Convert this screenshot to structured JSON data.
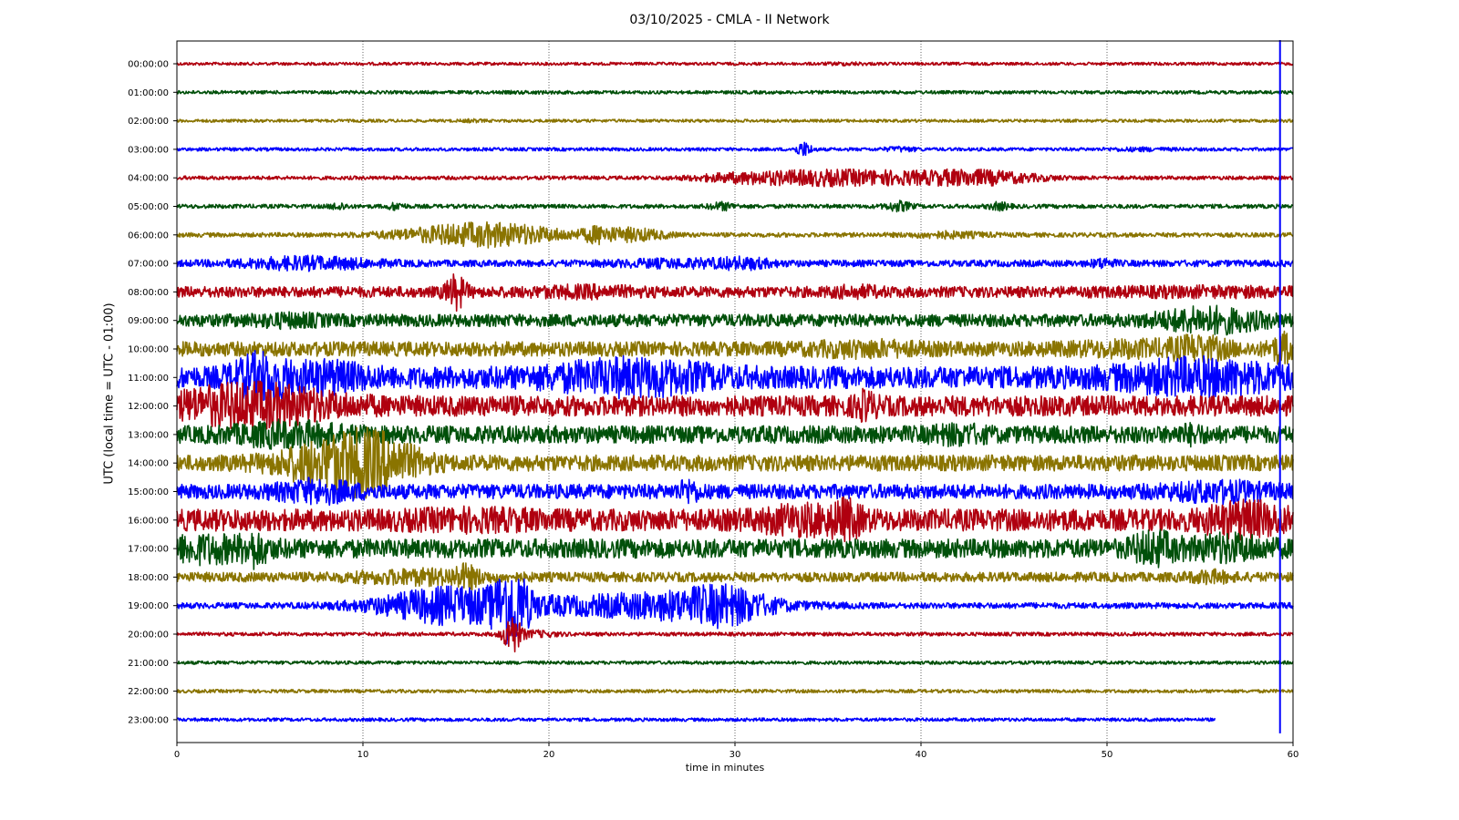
{
  "chart_data": {
    "type": "line",
    "title": "03/10/2025 - CMLA - II Network",
    "xlabel": "time in minutes",
    "ylabel": "UTC (local time = UTC - 01:00)",
    "xlim": [
      0,
      60
    ],
    "xticks": [
      0,
      10,
      20,
      30,
      40,
      50,
      60
    ],
    "grid": "vertical dotted",
    "row_colors": [
      "#b0000f",
      "#00500a",
      "#8a7400",
      "#0000ff"
    ],
    "rows": [
      {
        "label": "00:00:00",
        "amp": 0.4,
        "bursts": [
          [
            36.0,
            0.8,
            1.5
          ]
        ]
      },
      {
        "label": "01:00:00",
        "amp": 0.45,
        "bursts": [
          [
            19.0,
            1.0,
            1.2
          ]
        ]
      },
      {
        "label": "02:00:00",
        "amp": 0.4,
        "bursts": [
          [
            15.9,
            0.4,
            1.5
          ]
        ]
      },
      {
        "label": "03:00:00",
        "amp": 0.45,
        "bursts": [
          [
            33.7,
            0.3,
            5.0
          ],
          [
            38.9,
            0.6,
            2.0
          ],
          [
            51.8,
            1.2,
            1.6
          ]
        ]
      },
      {
        "label": "04:00:00",
        "amp": 0.5,
        "bursts": [
          [
            30.5,
            2.0,
            3.0
          ],
          [
            35.0,
            2.5,
            4.5
          ],
          [
            38.0,
            1.5,
            2.0
          ],
          [
            42.5,
            2.5,
            5.0
          ]
        ]
      },
      {
        "label": "05:00:00",
        "amp": 0.55,
        "bursts": [
          [
            8.7,
            0.3,
            2.5
          ],
          [
            11.8,
            0.3,
            2.5
          ],
          [
            29.3,
            0.5,
            2.5
          ],
          [
            38.8,
            0.5,
            3.0
          ],
          [
            44.2,
            0.4,
            2.5
          ]
        ]
      },
      {
        "label": "06:00:00",
        "amp": 0.6,
        "bursts": [
          [
            16.5,
            3.0,
            6.0
          ],
          [
            22.6,
            0.5,
            3.5
          ],
          [
            24.5,
            1.2,
            3.5
          ],
          [
            41.5,
            1.5,
            2.0
          ]
        ]
      },
      {
        "label": "07:00:00",
        "amp": 0.9,
        "bursts": [
          [
            7.0,
            2.5,
            2.5
          ],
          [
            27.0,
            2.5,
            1.8
          ],
          [
            30.5,
            1.0,
            2.0
          ],
          [
            49.8,
            0.4,
            2.0
          ]
        ]
      },
      {
        "label": "08:00:00",
        "amp": 1.5,
        "bursts": [
          [
            15.0,
            0.4,
            3.5
          ],
          [
            22.0,
            2.0,
            1.5
          ],
          [
            36.5,
            1.0,
            1.5
          ],
          [
            55.0,
            4.0,
            1.3
          ]
        ]
      },
      {
        "label": "09:00:00",
        "amp": 1.7,
        "bursts": [
          [
            6.0,
            1.5,
            1.5
          ],
          [
            55.5,
            2.0,
            2.5
          ]
        ]
      },
      {
        "label": "10:00:00",
        "amp": 2.0,
        "bursts": [
          [
            37.0,
            2.0,
            1.5
          ],
          [
            51.5,
            2.5,
            1.5
          ],
          [
            55.0,
            1.0,
            2.0
          ],
          [
            59.5,
            0.5,
            2.5
          ]
        ]
      },
      {
        "label": "11:00:00",
        "amp": 3.0,
        "bursts": [
          [
            4.5,
            1.0,
            2.5
          ],
          [
            8.0,
            1.5,
            1.8
          ],
          [
            24.5,
            3.0,
            2.0
          ],
          [
            55.0,
            3.0,
            2.0
          ]
        ]
      },
      {
        "label": "12:00:00",
        "amp": 2.8,
        "bursts": [
          [
            4.0,
            3.0,
            2.5
          ],
          [
            37.0,
            0.4,
            1.8
          ]
        ]
      },
      {
        "label": "13:00:00",
        "amp": 2.4,
        "bursts": [
          [
            6.0,
            2.0,
            1.8
          ],
          [
            42.0,
            1.0,
            1.5
          ],
          [
            54.5,
            0.5,
            1.5
          ]
        ]
      },
      {
        "label": "14:00:00",
        "amp": 2.2,
        "bursts": [
          [
            8.5,
            2.0,
            3.5
          ],
          [
            11.0,
            1.5,
            3.0
          ]
        ]
      },
      {
        "label": "15:00:00",
        "amp": 2.0,
        "bursts": [
          [
            7.5,
            1.5,
            2.0
          ],
          [
            27.5,
            0.4,
            2.0
          ],
          [
            56.0,
            2.0,
            1.8
          ]
        ]
      },
      {
        "label": "16:00:00",
        "amp": 3.0,
        "bursts": [
          [
            16.0,
            2.5,
            1.3
          ],
          [
            33.5,
            1.5,
            1.7
          ],
          [
            36.0,
            0.6,
            2.0
          ],
          [
            57.5,
            1.5,
            2.0
          ]
        ]
      },
      {
        "label": "17:00:00",
        "amp": 2.6,
        "bursts": [
          [
            1.5,
            2.0,
            1.8
          ],
          [
            4.2,
            0.4,
            2.0
          ],
          [
            52.5,
            0.8,
            2.2
          ],
          [
            56.5,
            1.5,
            1.8
          ]
        ]
      },
      {
        "label": "18:00:00",
        "amp": 1.3,
        "bursts": [
          [
            13.0,
            2.5,
            2.0
          ],
          [
            15.5,
            0.5,
            2.5
          ],
          [
            55.5,
            0.8,
            1.8
          ]
        ]
      },
      {
        "label": "19:00:00",
        "amp": 0.8,
        "bursts": [
          [
            15.0,
            3.0,
            7.0
          ],
          [
            18.0,
            0.6,
            11.0
          ],
          [
            26.0,
            4.0,
            5.0
          ],
          [
            29.5,
            1.5,
            5.0
          ]
        ]
      },
      {
        "label": "20:00:00",
        "amp": 0.5,
        "bursts": [
          [
            18.0,
            0.3,
            12.0
          ],
          [
            19.0,
            1.0,
            2.5
          ]
        ]
      },
      {
        "label": "21:00:00",
        "amp": 0.45,
        "bursts": []
      },
      {
        "label": "22:00:00",
        "amp": 0.45,
        "bursts": []
      },
      {
        "label": "23:00:00",
        "amp": 0.45,
        "bursts": [],
        "end_minute": 55.8
      }
    ],
    "spike_event": {
      "minute": 59.3,
      "color": "#0000ff",
      "from_row": "00:00:00",
      "to_row": "23:00:00"
    }
  }
}
